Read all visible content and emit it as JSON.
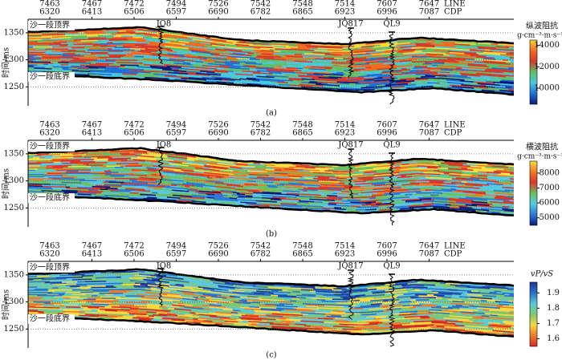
{
  "panels": [
    {
      "caption": "(a)",
      "line_name": "LINE",
      "cdp_name": "CDP",
      "line_ticks": [
        7463,
        7467,
        7472,
        7494,
        7526,
        7542,
        7548,
        7514,
        7607,
        7647
      ],
      "cdp_ticks": [
        6320,
        6413,
        6506,
        6597,
        6690,
        6782,
        6865,
        6923,
        6996,
        7087
      ],
      "y_label": "时间/ms",
      "ylim": [
        1215,
        1375
      ],
      "yticks": [
        1250,
        1300,
        1350
      ],
      "grid": true,
      "horizons": [
        "沙一段顶界",
        "沙一段底界"
      ],
      "wells": [
        "JQ8",
        "JQ817",
        "QL9"
      ],
      "colorbar": {
        "title": "纵波阻抗",
        "unit": "g·cm⁻³·m·s⁻¹",
        "lim": [
          8500,
          14500
        ],
        "ticks": [
          10000,
          12000,
          14000
        ],
        "colors": [
          "#0a1a7a",
          "#1f6fd6",
          "#48c8e0",
          "#5fbf6a",
          "#d43a2a",
          "#f06a20",
          "#f8d838"
        ]
      }
    },
    {
      "caption": "(b)",
      "line_name": "LINE",
      "cdp_name": "CDP",
      "line_ticks": [
        7463,
        7467,
        7472,
        7494,
        7526,
        7542,
        7548,
        7514,
        7607,
        7647
      ],
      "cdp_ticks": [
        6320,
        6413,
        6506,
        6597,
        6690,
        6782,
        6865,
        6923,
        6996,
        7087
      ],
      "y_label": "时间/ms",
      "ylim": [
        1215,
        1375
      ],
      "yticks": [
        1250,
        1300,
        1350
      ],
      "grid": true,
      "horizons": [
        "沙一段顶界",
        "沙一段底界"
      ],
      "wells": [
        "JQ8",
        "JQ817",
        "QL9"
      ],
      "colorbar": {
        "title": "横波阻抗",
        "unit": "g·cm⁻³·m·s⁻¹",
        "lim": [
          4500,
          8800
        ],
        "ticks": [
          5000,
          6000,
          7000,
          8000
        ],
        "colors": [
          "#0a1a7a",
          "#2a78d8",
          "#58c8e0",
          "#6cbf5e",
          "#d8382a",
          "#f07a22",
          "#f8e040"
        ]
      }
    },
    {
      "caption": "(c)",
      "line_name": "LINE",
      "cdp_name": "CDP",
      "line_ticks": [
        7463,
        7467,
        7472,
        7494,
        7526,
        7542,
        7548,
        7514,
        7607,
        7647
      ],
      "cdp_ticks": [
        6320,
        6413,
        6506,
        6597,
        6690,
        6782,
        6865,
        6923,
        6996,
        7087
      ],
      "y_label": "时间/ms",
      "ylim": [
        1215,
        1375
      ],
      "yticks": [
        1250,
        1300,
        1350
      ],
      "grid": true,
      "horizons": [
        "沙一段顶界",
        "沙一段底界"
      ],
      "wells": [
        "JQ8",
        "JQ817",
        "QL9"
      ],
      "colorbar": {
        "title": "vP/vS",
        "lim": [
          1.55,
          1.97
        ],
        "ticks": [
          1.6,
          1.7,
          1.8,
          1.9
        ],
        "colors": [
          "#d42a22",
          "#f07828",
          "#f8d840",
          "#7cc870",
          "#5cc8d8",
          "#2a70c8",
          "#1a3a98"
        ]
      }
    }
  ]
}
